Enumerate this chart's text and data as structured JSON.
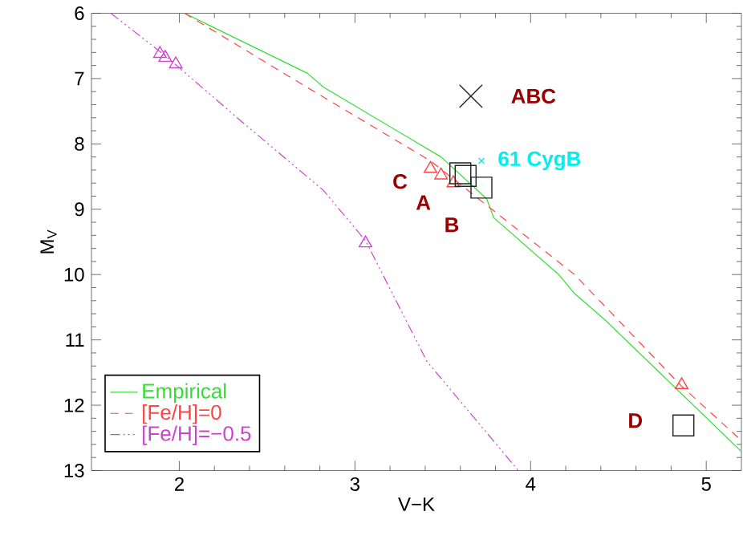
{
  "chart_data": {
    "type": "line",
    "xlabel": "V−K",
    "ylabel": "M$_{V}$",
    "xlim": [
      1.5,
      5.2
    ],
    "ylim": [
      13,
      6
    ],
    "xticks": [
      2,
      3,
      4,
      5
    ],
    "yticks": [
      6,
      7,
      8,
      9,
      10,
      11,
      12,
      13
    ],
    "grid": false,
    "legend": "bottom left",
    "series": [
      {
        "name": "Empirical",
        "color": "#33dd33",
        "line_style": "solid",
        "marker": "none",
        "x": [
          2.03,
          2.73,
          2.82,
          3.49,
          3.75,
          3.79,
          4.16,
          4.25,
          4.43,
          5.2
        ],
        "values": [
          6.0,
          6.92,
          7.13,
          8.2,
          8.84,
          9.13,
          10.0,
          10.29,
          10.71,
          12.71
        ]
      },
      {
        "name": "[Fe/H]=0",
        "color": "#ff4444",
        "line_style": "dashed",
        "marker": "none",
        "x": [
          2.03,
          2.7,
          3.43,
          4.25,
          4.86,
          5.2
        ],
        "values": [
          6.0,
          7.09,
          8.26,
          10.0,
          11.71,
          12.54
        ]
      },
      {
        "name": "[Fe/H]=−0.5",
        "color": "#cc44cc",
        "line_style": "dashdotdotted",
        "marker": "none",
        "x": [
          1.61,
          1.92,
          2.36,
          2.82,
          3.06,
          3.41,
          3.93
        ],
        "values": [
          6.0,
          6.65,
          7.67,
          8.71,
          9.48,
          11.33,
          13.0
        ]
      },
      {
        "type": "scatter",
        "color": "#ff4444",
        "marker": "triangle",
        "x": [
          3.43,
          3.49,
          3.56,
          4.86
        ],
        "values": [
          8.38,
          8.48,
          8.6,
          11.69
        ]
      },
      {
        "type": "scatter",
        "color": "#cc44cc",
        "marker": "triangle",
        "x": [
          1.89,
          1.92,
          1.98,
          3.06
        ],
        "values": [
          6.62,
          6.68,
          6.78,
          9.52
        ]
      },
      {
        "type": "scatter",
        "color": "#222222",
        "marker": "square",
        "x": [
          3.6,
          3.63,
          3.72,
          4.87
        ],
        "values": [
          8.45,
          8.49,
          8.67,
          12.31
        ]
      },
      {
        "type": "scatter",
        "color": "#222222",
        "marker": "cross",
        "x": [
          3.66
        ],
        "values": [
          7.27
        ]
      },
      {
        "name": "61 CygB",
        "type": "scatter",
        "color": "#00eeee",
        "marker": "cross",
        "x": [
          3.72
        ],
        "values": [
          8.26
        ]
      }
    ],
    "annotations": [
      {
        "text": "ABC",
        "x": 3.66,
        "y": 7.27
      },
      {
        "text": "C",
        "x": 3.43,
        "y": 8.38
      },
      {
        "text": "A",
        "x": 3.49,
        "y": 8.48
      },
      {
        "text": "B",
        "x": 3.56,
        "y": 8.6
      },
      {
        "text": "D",
        "x": 4.87,
        "y": 12.31
      }
    ]
  }
}
